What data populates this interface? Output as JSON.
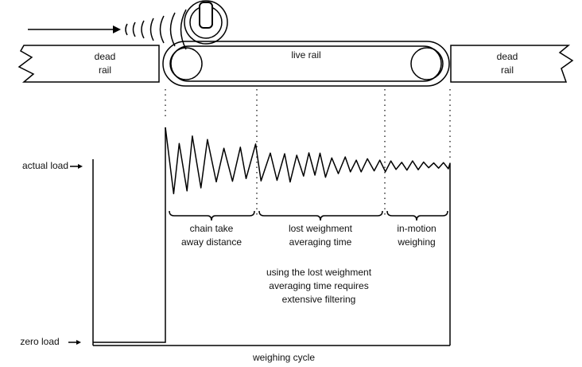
{
  "rails": {
    "left": {
      "lines": [
        "dead",
        "rail"
      ]
    },
    "live": "live rail",
    "right": {
      "lines": [
        "dead",
        "rail"
      ]
    }
  },
  "graph": {
    "actual_load": "actual load",
    "zero_load": "zero load",
    "segments": [
      {
        "lines": [
          "chain take",
          "away distance"
        ]
      },
      {
        "lines": [
          "lost weighment",
          "averaging time"
        ]
      },
      {
        "lines": [
          "in-motion",
          "weighing"
        ]
      }
    ],
    "note": {
      "lines": [
        "using the lost weighment",
        "averaging time requires",
        "extensive filtering"
      ]
    },
    "x_label": "weighing cycle"
  }
}
